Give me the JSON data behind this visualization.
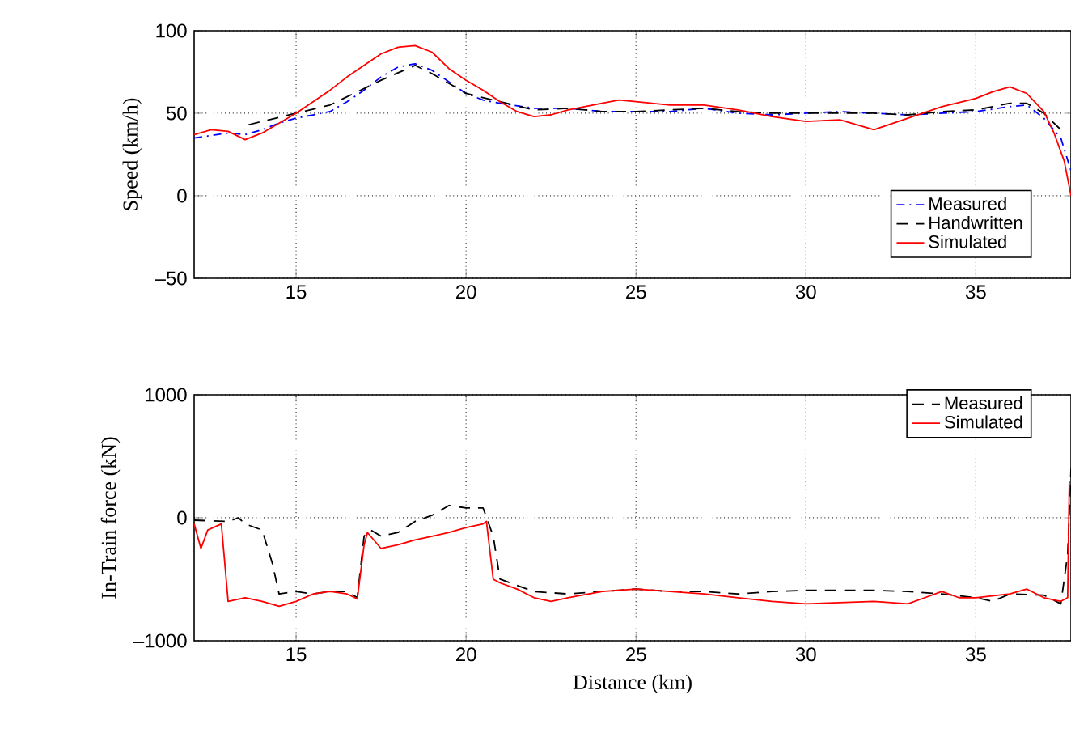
{
  "chart_data": [
    {
      "type": "line",
      "ylabel": "Speed (km/h)",
      "xlim": [
        12,
        37.8
      ],
      "xticks": [
        15,
        20,
        25,
        30,
        35
      ],
      "ylim": [
        -50,
        100
      ],
      "yticks": [
        {
          "value": -50,
          "label": "–50"
        },
        0,
        50,
        100
      ],
      "grid": true,
      "legend": "bottom right",
      "series": [
        {
          "name": "Measured",
          "color": "#0000ff",
          "line_style": "dashdot",
          "x": [
            12,
            13,
            13.5,
            14,
            14.5,
            15,
            15.5,
            16,
            16.5,
            17,
            17.5,
            18,
            18.5,
            19,
            19.5,
            20,
            20.5,
            21,
            22,
            23,
            24,
            25,
            26,
            27,
            28,
            29,
            30,
            31,
            32,
            33,
            34,
            35,
            36,
            36.5,
            37,
            37.5,
            37.8
          ],
          "values": [
            35,
            38,
            37,
            40,
            44,
            47,
            49,
            51,
            57,
            64,
            72,
            78,
            80,
            76,
            69,
            62,
            58,
            56,
            53,
            53,
            51,
            51,
            51,
            53,
            50,
            49,
            50,
            51,
            50,
            49,
            50,
            51,
            54,
            55,
            47,
            35,
            15
          ]
        },
        {
          "name": "Handwritten",
          "color": "#000000",
          "line_style": "dashed",
          "x": [
            13.6,
            16,
            17.5,
            18.5,
            19,
            20,
            21,
            22,
            23,
            24,
            25,
            26,
            27,
            28,
            29,
            30,
            31,
            32,
            33,
            34,
            35,
            36,
            36.5,
            37,
            37.5
          ],
          "values": [
            43,
            55,
            70,
            79,
            74,
            62,
            57,
            52,
            53,
            51,
            51,
            52,
            53,
            51,
            50,
            50,
            50,
            50,
            49,
            51,
            52,
            56,
            56,
            50,
            40
          ]
        },
        {
          "name": "Simulated",
          "color": "#ff0000",
          "line_style": "solid",
          "x": [
            12,
            12.5,
            13,
            13.5,
            14,
            14.5,
            15,
            15.5,
            16,
            16.5,
            17,
            17.5,
            18,
            18.5,
            19,
            19.5,
            20,
            20.5,
            21,
            21.5,
            22,
            22.5,
            23,
            24,
            24.5,
            25,
            26,
            27,
            28,
            29,
            30,
            31,
            32,
            33,
            34,
            35,
            35.5,
            36,
            36.5,
            37,
            37.3,
            37.6,
            37.8
          ],
          "values": [
            37,
            40,
            39,
            34,
            38,
            44,
            50,
            57,
            64,
            72,
            79,
            86,
            90,
            91,
            87,
            77,
            70,
            64,
            57,
            51,
            48,
            49,
            52,
            56,
            58,
            57,
            55,
            55,
            52,
            48,
            45,
            46,
            40,
            47,
            54,
            59,
            63,
            66,
            62,
            51,
            38,
            21,
            0
          ]
        }
      ]
    },
    {
      "type": "line",
      "xlabel": "Distance (km)",
      "ylabel": "In-Train force (kN)",
      "xlim": [
        12,
        37.8
      ],
      "xticks": [
        15,
        20,
        25,
        30,
        35
      ],
      "ylim": [
        -1000,
        1000
      ],
      "yticks": [
        {
          "value": -1000,
          "label": "–1000"
        },
        0,
        1000
      ],
      "grid": true,
      "legend": "top right",
      "series": [
        {
          "name": "Measured",
          "color": "#000000",
          "line_style": "dashed",
          "x": [
            12,
            13,
            13.3,
            13.5,
            14,
            14.3,
            14.5,
            15,
            15.5,
            16,
            16.5,
            16.8,
            17,
            17.2,
            17.5,
            18,
            18.5,
            19,
            19.5,
            20,
            20.5,
            20.8,
            21,
            21.5,
            22,
            23,
            24,
            25,
            26,
            27,
            28,
            29,
            30,
            31,
            32,
            33,
            34,
            35,
            35.5,
            36,
            37,
            37.5,
            37.7,
            37.8
          ],
          "values": [
            -20,
            -30,
            0,
            -50,
            -100,
            -370,
            -620,
            -600,
            -620,
            -600,
            -600,
            -650,
            -150,
            -100,
            -150,
            -120,
            -30,
            20,
            100,
            80,
            80,
            -150,
            -500,
            -550,
            -600,
            -620,
            -600,
            -580,
            -600,
            -600,
            -620,
            -600,
            -590,
            -590,
            -590,
            -600,
            -620,
            -650,
            -680,
            -620,
            -630,
            -700,
            -300,
            400
          ]
        },
        {
          "name": "Simulated",
          "color": "#ff0000",
          "line_style": "solid",
          "x": [
            12,
            12.2,
            12.4,
            12.8,
            13,
            13.5,
            14,
            14.5,
            15,
            15.5,
            16,
            16.5,
            16.8,
            17,
            17.1,
            17.5,
            18,
            18.5,
            19,
            19.5,
            20,
            20.5,
            20.6,
            20.8,
            21,
            21.5,
            22,
            22.5,
            23,
            24,
            25,
            26,
            27,
            28,
            29,
            30,
            31,
            32,
            33,
            33.5,
            34,
            34.5,
            35,
            36,
            36.5,
            37,
            37.5,
            37.7,
            37.75
          ],
          "values": [
            -50,
            -250,
            -100,
            -50,
            -680,
            -650,
            -680,
            -720,
            -680,
            -620,
            -600,
            -620,
            -660,
            -220,
            -120,
            -250,
            -220,
            -180,
            -150,
            -120,
            -80,
            -50,
            -30,
            -500,
            -530,
            -580,
            -650,
            -680,
            -650,
            -600,
            -580,
            -600,
            -620,
            -650,
            -680,
            -700,
            -690,
            -680,
            -700,
            -650,
            -600,
            -650,
            -650,
            -620,
            -580,
            -650,
            -680,
            -650,
            300
          ]
        }
      ]
    }
  ]
}
